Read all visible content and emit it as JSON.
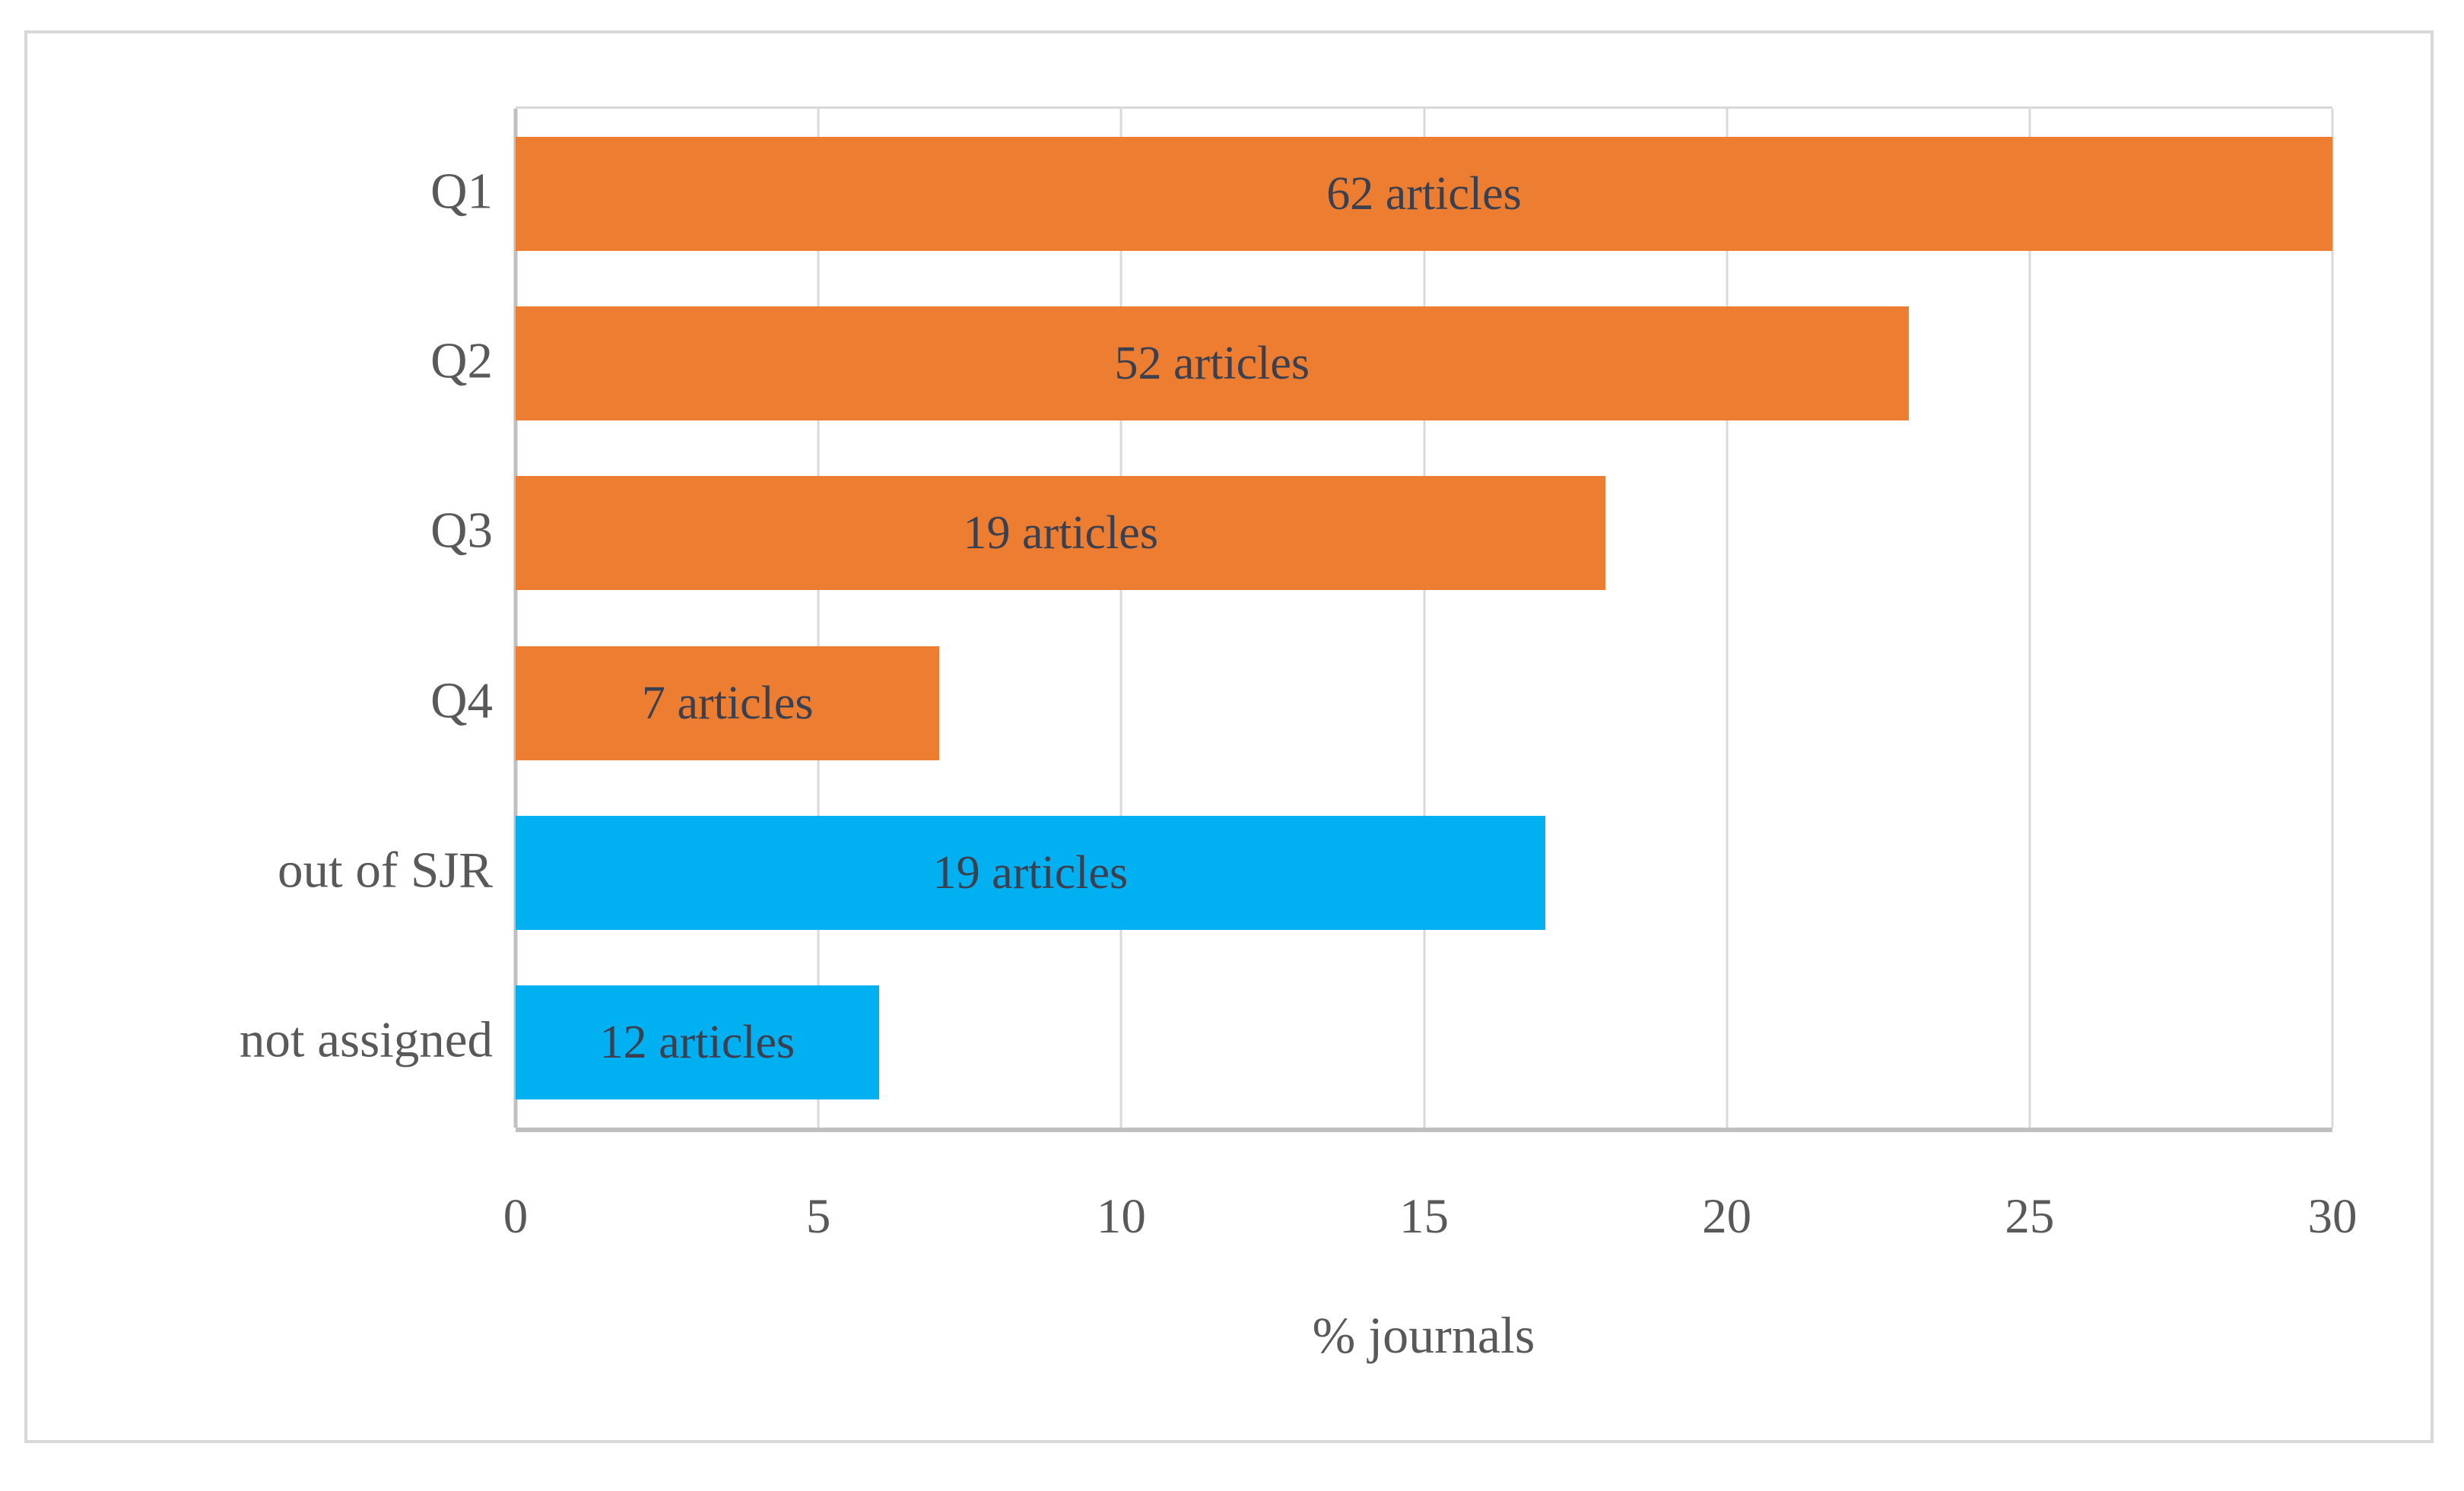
{
  "figure": {
    "border_color": "#d8d8d8",
    "gridline_color": "#d9d9d9",
    "axis_line_color": "#bfbfbf",
    "tick_label_color": "#595959",
    "data_label_color": "#3b4050"
  },
  "chart_data": {
    "type": "bar",
    "orientation": "horizontal",
    "title": "",
    "xlabel": "% journals",
    "ylabel": "",
    "xlim": [
      0,
      30
    ],
    "x_tick_values": [
      0,
      5,
      10,
      15,
      20,
      25,
      30
    ],
    "x_tick_labels": [
      "0",
      "5",
      "10",
      "15",
      "20",
      "25",
      "30"
    ],
    "grid": true,
    "legend": "none",
    "categories": [
      "Q1",
      "Q2",
      "Q3",
      "Q4",
      "out of SJR",
      "not assigned"
    ],
    "values": [
      30,
      23,
      18,
      7,
      17,
      6
    ],
    "bar_labels": [
      "62 articles",
      "52 articles",
      "19 articles",
      "7 articles",
      "19 articles",
      "12 articles"
    ],
    "bar_colors": [
      "#ED7D31",
      "#ED7D31",
      "#ED7D31",
      "#ED7D31",
      "#00B0F0",
      "#00B0F0"
    ],
    "series_note_colors": {
      "sjr_quartile": "#ED7D31",
      "outside_or_unassigned": "#00B0F0"
    }
  }
}
